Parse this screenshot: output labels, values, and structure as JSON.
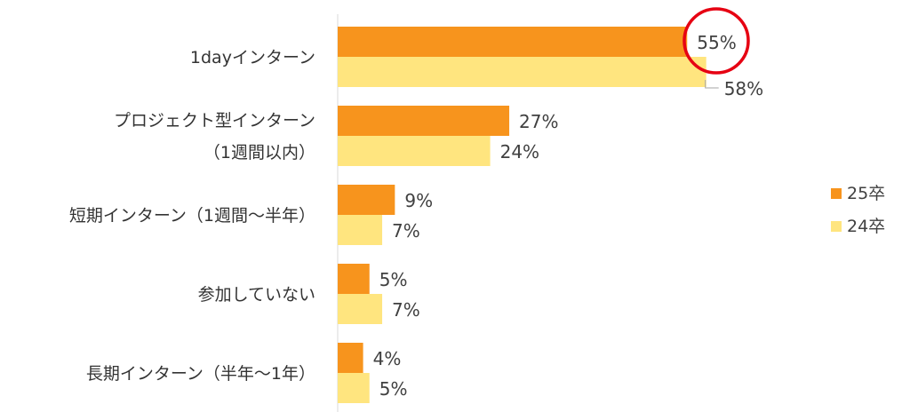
{
  "chart_data": {
    "type": "bar",
    "orientation": "horizontal",
    "categories": [
      [
        "1dayインターン"
      ],
      [
        "プロジェクト型インターン",
        "（1週間以内）"
      ],
      [
        "短期インターン（1週間〜半年）"
      ],
      [
        "参加していない"
      ],
      [
        "長期インターン（半年〜1年）"
      ]
    ],
    "series": [
      {
        "name": "25卒",
        "values": [
          55,
          27,
          9,
          5,
          4
        ],
        "color": "#F7941D"
      },
      {
        "name": "24卒",
        "values": [
          58,
          24,
          7,
          7,
          5
        ],
        "color": "#FFE57F"
      }
    ],
    "value_suffix": "%",
    "xlim": [
      0,
      100
    ],
    "grid": false,
    "legend": "right",
    "highlight": {
      "category_index": 0,
      "series_index": 0,
      "color": "#E60012"
    }
  }
}
